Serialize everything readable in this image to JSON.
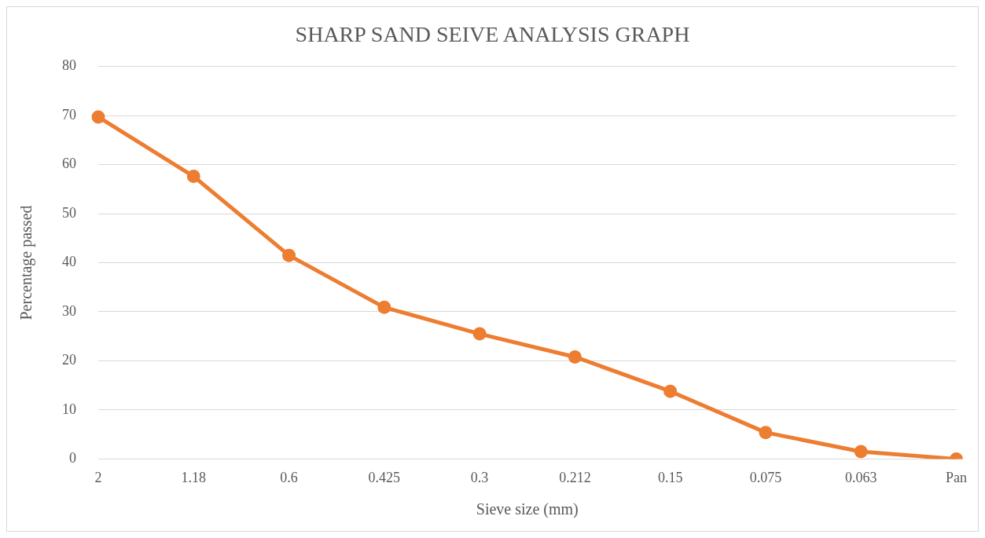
{
  "chart_data": {
    "type": "line",
    "title": "SHARP SAND SEIVE ANALYSIS GRAPH",
    "xlabel": "Sieve size (mm)",
    "ylabel": "Percentage passed",
    "categories": [
      "2",
      "1.18",
      "0.6",
      "0.425",
      "0.3",
      "0.212",
      "0.15",
      "0.075",
      "0.063",
      "Pan"
    ],
    "series": [
      {
        "color": "#ed7d31",
        "values": [
          69.7,
          57.6,
          41.5,
          30.9,
          25.5,
          20.8,
          13.8,
          5.4,
          1.5,
          0
        ]
      }
    ],
    "ylim": [
      0,
      80
    ],
    "yticks": [
      0,
      10,
      20,
      30,
      40,
      50,
      60,
      70,
      80
    ],
    "grid": "y",
    "legend": false,
    "marker": "circle",
    "line_style": "solid"
  }
}
